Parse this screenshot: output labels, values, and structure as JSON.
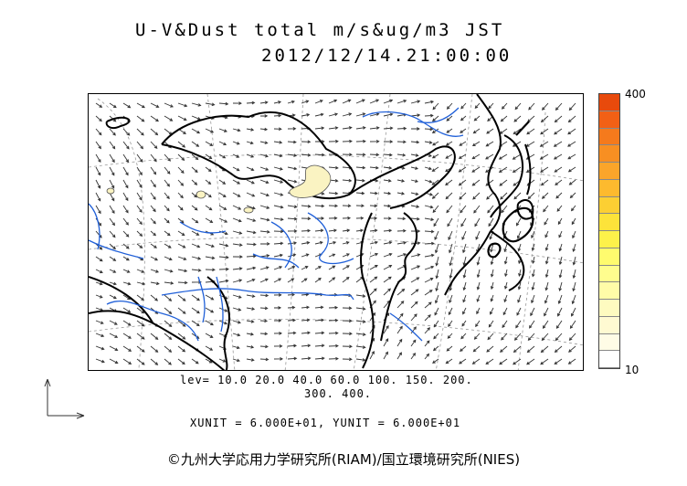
{
  "header": {
    "title_line1": "U-V&Dust total m/s&ug/m3 JST",
    "title_line2": "2012/12/14.21:00:00"
  },
  "colorbar": {
    "max_label": "400",
    "min_label": "10",
    "colors": [
      "#e84a0c",
      "#f26015",
      "#f57a1c",
      "#f88f22",
      "#fba52a",
      "#fdba2e",
      "#fccf33",
      "#fde33a",
      "#fdf14a",
      "#fffb6e",
      "#fffd8e",
      "#fffca8",
      "#fefbc0",
      "#fffad2",
      "#fffce6",
      "#ffffff"
    ]
  },
  "levels": {
    "line1": "lev= 10.0 20.0 40.0 60.0 100. 150. 200.",
    "line2": "300. 400."
  },
  "units": {
    "text": "XUNIT = 6.000E+01, YUNIT = 6.000E+01"
  },
  "footer": {
    "credit": "©九州大学応用力学研究所(RIAM)/国立環境研究所(NIES)"
  },
  "map": {
    "coast_color": "#000000",
    "river_color": "#1f5fd8",
    "dust_fill": "#faf3c2",
    "grid_color": "#999999"
  }
}
